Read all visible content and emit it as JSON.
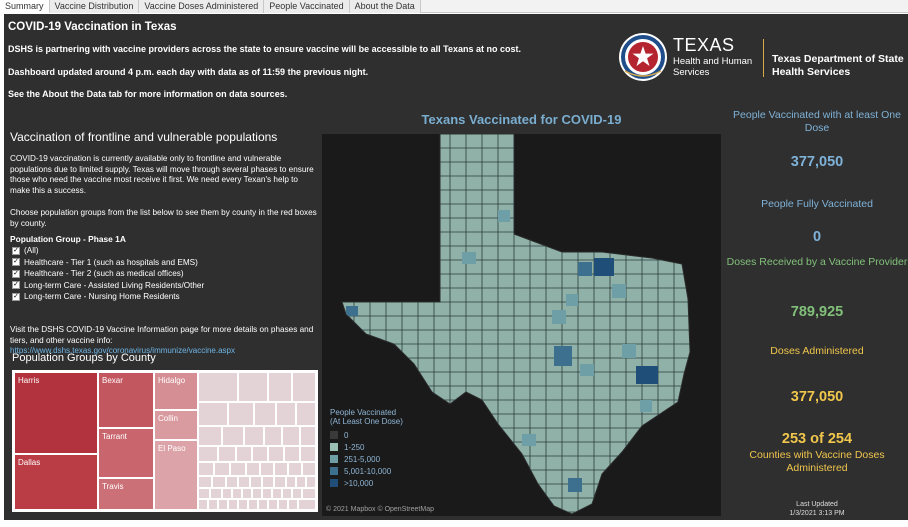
{
  "tabs": [
    "Summary",
    "Vaccine Distribution",
    "Vaccine Doses Administered",
    "People Vaccinated",
    "About the Data"
  ],
  "active_tab": 0,
  "header": {
    "title": "COVID-19 Vaccination in Texas",
    "line1": "DSHS is partnering with vaccine providers across the state to ensure vaccine will be accessible to all Texans at no cost.",
    "line2": "Dashboard updated around 4 p.m. each day with data as of 11:59 the previous night.",
    "line3": "See the About the Data tab for more information on data sources."
  },
  "logo": {
    "texas": "TEXAS",
    "hhs_line1": "Health and Human",
    "hhs_line2": "Services",
    "dshs_line1": "Texas Department of State",
    "dshs_line2": "Health Services"
  },
  "left": {
    "title": "Vaccination of frontline and vulnerable populations",
    "para1": "COVID-19 vaccination is currently available only to frontline and vulnerable populations due to limited supply. Texas will move through several phases to ensure those who need the vaccine most receive it first. We need every Texan's help to make this a success.",
    "para2": "Choose population groups from the list below to see them by county in the red boxes by county.",
    "group_heading": "Population Group - Phase 1A",
    "groups": [
      "(All)",
      "Healthcare - Tier 1 (such as hospitals and EMS)",
      "Healthcare - Tier 2 (such as medical offices)",
      "Long-term Care - Assisted Living Residents/Other",
      "Long-term Care - Nursing Home Residents"
    ],
    "para3": "Visit the DSHS COVID-19 Vaccine Information page for more details on phases and tiers, and other vaccine info:",
    "link": "https://www.dshs.texas.gov/coronavirus/immunize/vaccine.aspx",
    "treemap_title": "Population Groups by County",
    "treemap_labels": [
      "Harris",
      "Dallas",
      "Bexar",
      "Tarrant",
      "Travis",
      "Hidalgo",
      "Collin",
      "El Paso"
    ]
  },
  "map": {
    "title": "Texans Vaccinated for COVID-19",
    "legend_title_1": "People Vaccinated",
    "legend_title_2": "(At Least One Dose)",
    "legend": [
      {
        "label": "0",
        "color": "#3a3a3a"
      },
      {
        "label": "1-250",
        "color": "#9bbfb5"
      },
      {
        "label": "251-5,000",
        "color": "#6e9fa7"
      },
      {
        "label": "5,001-10,000",
        "color": "#3d6f8e"
      },
      {
        "label": ">10,000",
        "color": "#1f4f79"
      }
    ],
    "attribution": "© 2021 Mapbox © OpenStreetMap"
  },
  "kpis": {
    "people_one_dose_label": "People Vaccinated with at least One Dose",
    "people_one_dose_value": "377,050",
    "people_fully_label": "People Fully Vaccinated",
    "people_fully_value": "0",
    "doses_received_label": "Doses Received by a Vaccine Provider",
    "doses_received_value": "789,925",
    "doses_admin_label": "Doses Administered",
    "doses_admin_value": "377,050",
    "counties_value": "253 of 254",
    "counties_label": "Counties with Vaccine Doses Administered",
    "last_updated_label": "Last Updated",
    "last_updated_value": "1/3/2021 3:13 PM"
  },
  "colors": {
    "background": "#2f2f2f",
    "blue": "#7fb2d8",
    "green": "#82c07a",
    "gold": "#f0c64c",
    "treemap_dark": "#b2333d",
    "treemap_light": "#e3d3d6"
  }
}
